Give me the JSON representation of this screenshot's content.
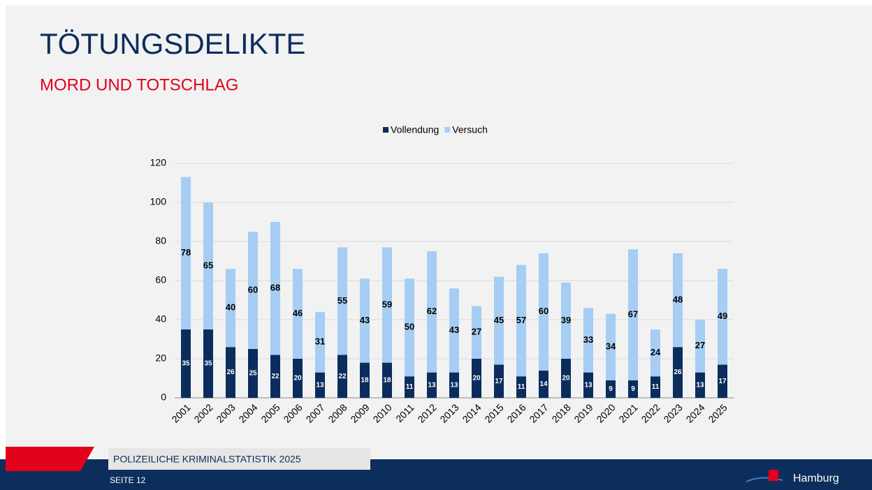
{
  "header": {
    "title": "TÖTUNGSDELIKTE",
    "subtitle": "MORD UND TOTSCHLAG"
  },
  "chart_data": {
    "type": "stacked_bar",
    "categories": [
      "2001",
      "2002",
      "2003",
      "2004",
      "2005",
      "2006",
      "2007",
      "2008",
      "2009",
      "2010",
      "2011",
      "2012",
      "2013",
      "2014",
      "2015",
      "2016",
      "2017",
      "2018",
      "2019",
      "2020",
      "2021",
      "2022",
      "2023",
      "2024",
      "2025"
    ],
    "series": [
      {
        "name": "Vollendung",
        "color": "#0a2d5e",
        "values": [
          35,
          35,
          26,
          25,
          22,
          20,
          13,
          22,
          18,
          18,
          11,
          13,
          13,
          20,
          17,
          11,
          14,
          20,
          13,
          9,
          9,
          11,
          26,
          13,
          17
        ]
      },
      {
        "name": "Versuch",
        "color": "#a6cdf4",
        "values": [
          78,
          65,
          40,
          60,
          68,
          46,
          31,
          55,
          43,
          59,
          50,
          62,
          43,
          27,
          45,
          57,
          60,
          39,
          33,
          34,
          67,
          24,
          48,
          27,
          49
        ]
      }
    ],
    "ylim": [
      0,
      120
    ],
    "yticks": [
      0,
      20,
      40,
      60,
      80,
      100,
      120
    ],
    "grid": true,
    "legend": "top"
  },
  "footer": {
    "report": "POLIZEILICHE KRIMINALSTATISTIK 2025",
    "page": "SEITE 12",
    "logo": "Hamburg"
  }
}
